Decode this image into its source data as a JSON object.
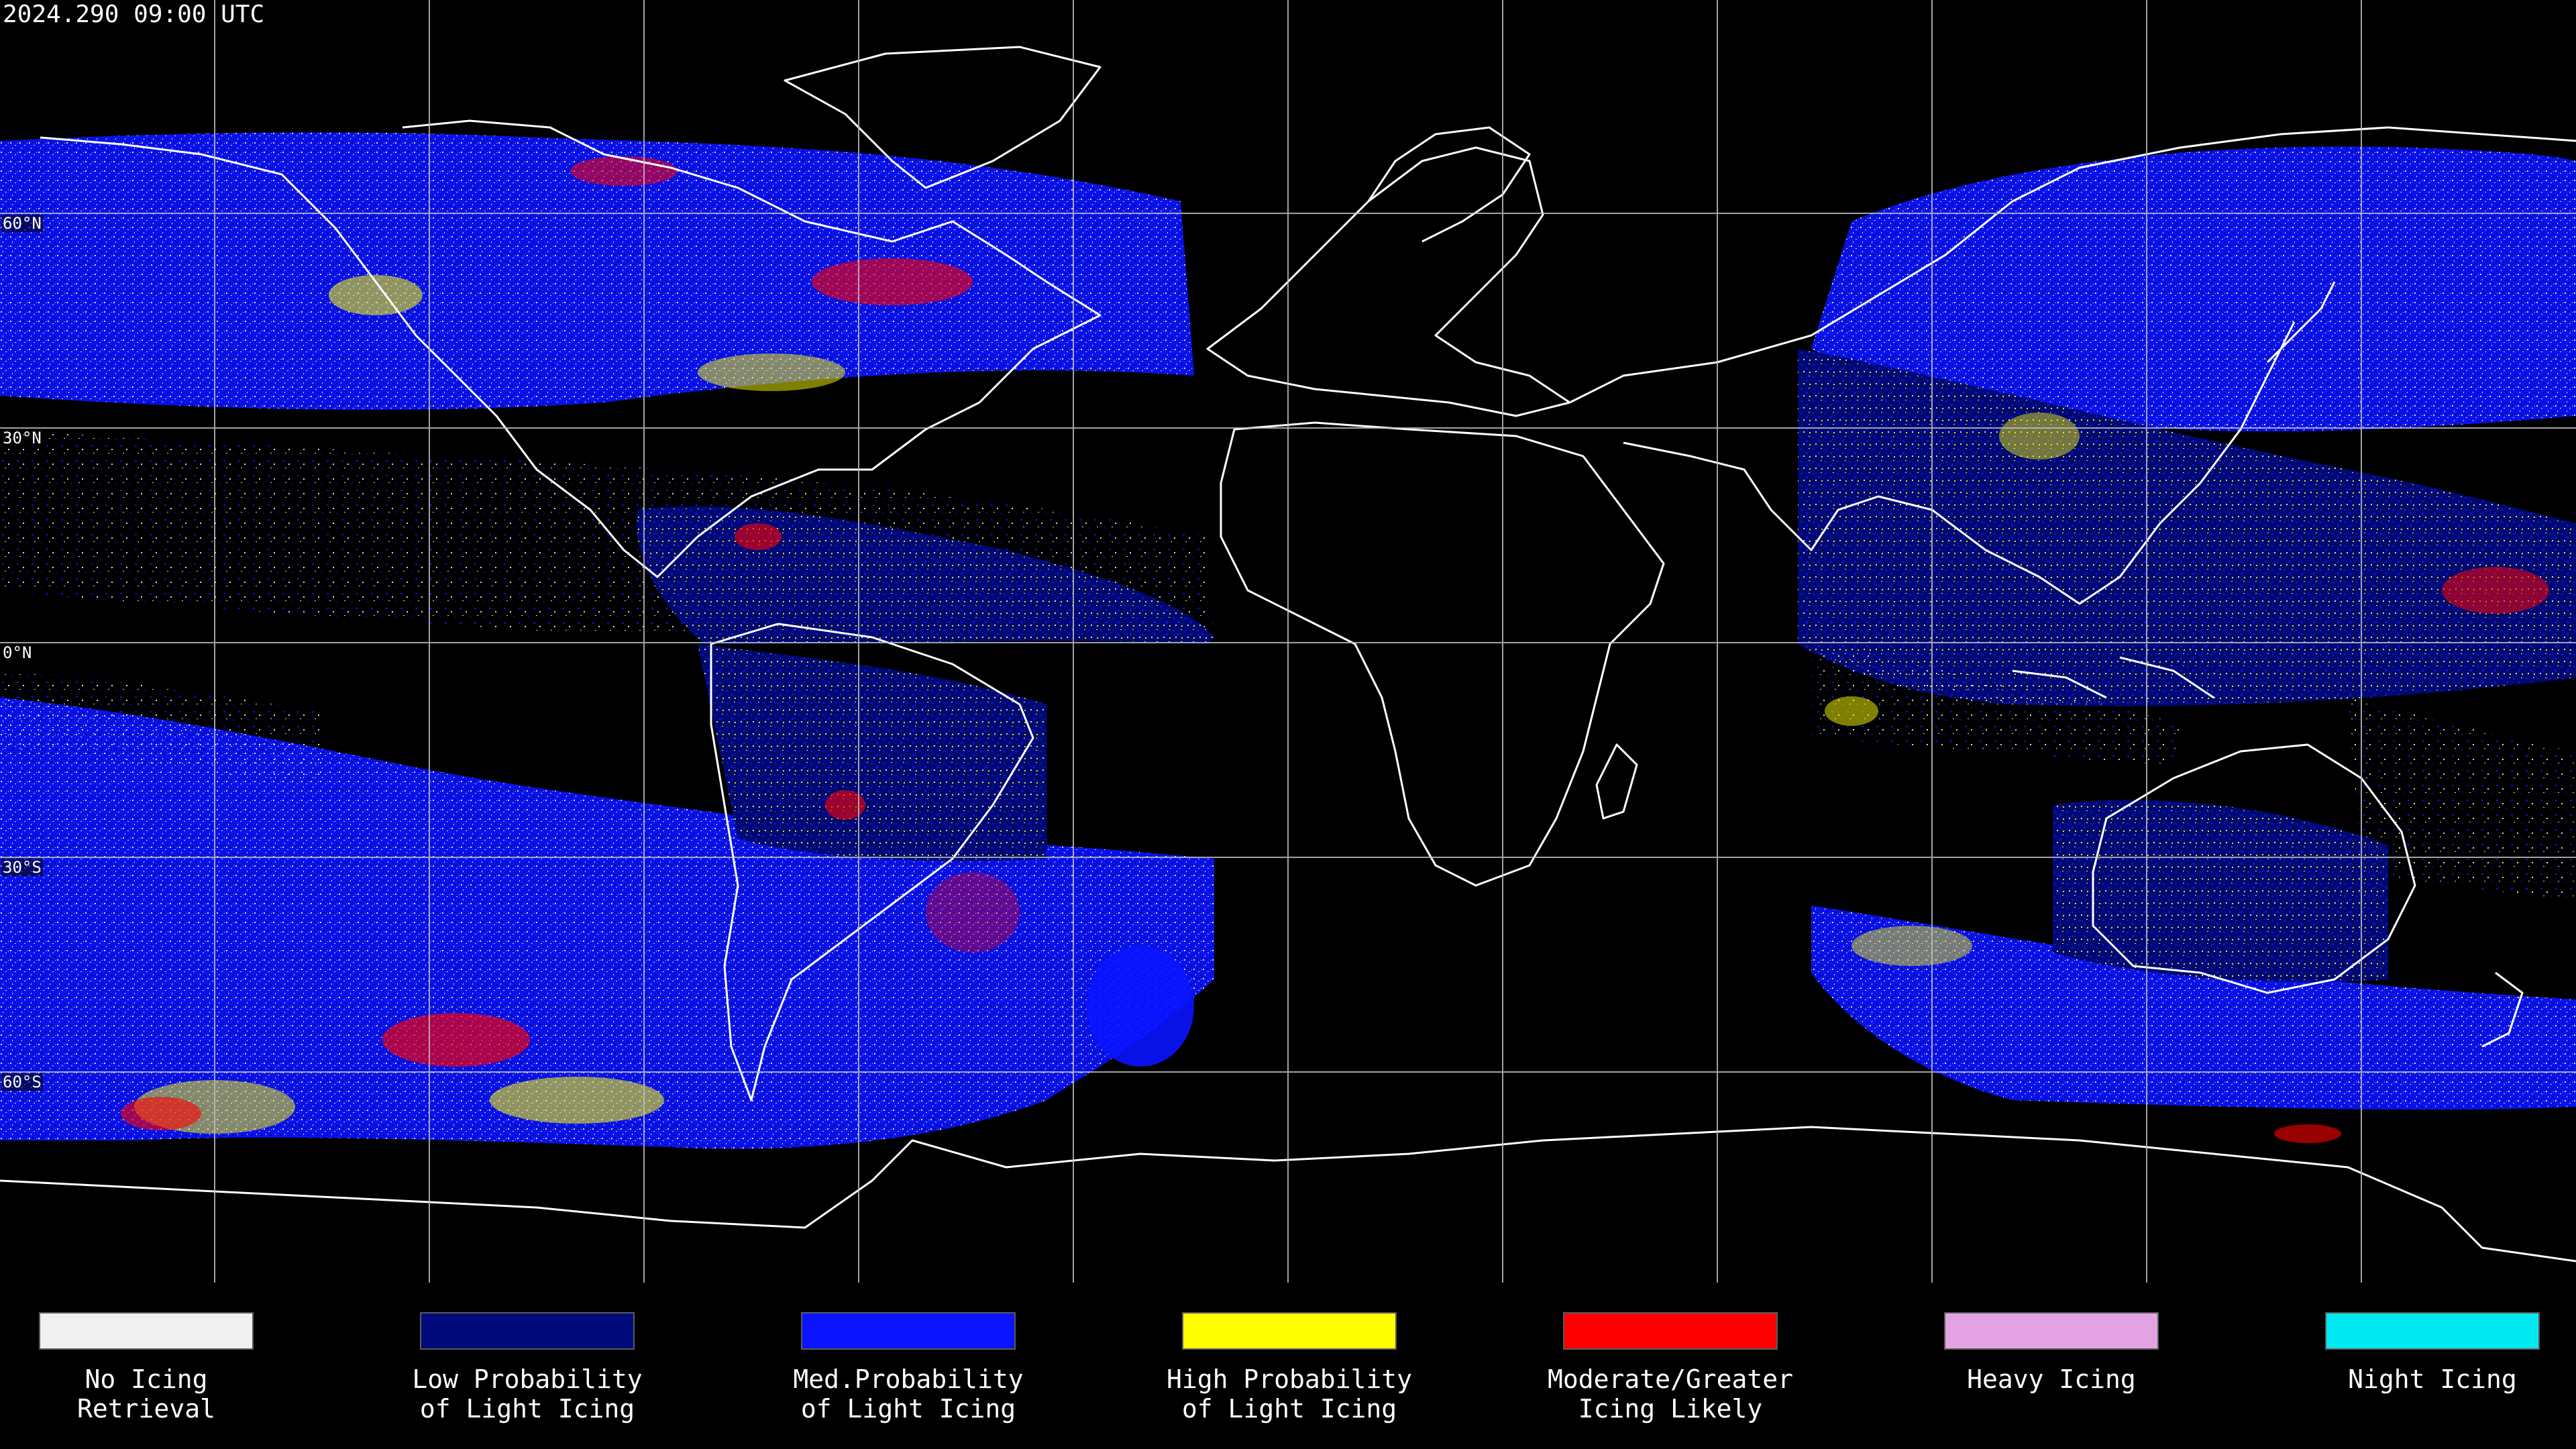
{
  "timestamp": "2024.290 09:00 UTC",
  "lat_labels": [
    "60°N",
    "30°N",
    "0°N",
    "30°S",
    "60°S"
  ],
  "colors": {
    "background": "#000000",
    "coast": "#ffffff",
    "grid": "#bfbfbf",
    "no_icing": "#f0f0f0",
    "low_probability": "#000a7a",
    "med_probability": "#0a14ff",
    "high_probability": "#ffff00",
    "moderate_greater": "#ff0000",
    "heavy_icing": "#e3a3e3",
    "night_icing": "#00e8f0"
  },
  "legend": [
    {
      "label": "No Icing\nRetrieval",
      "color": "#f0f0f0",
      "icon": "no-icing-swatch"
    },
    {
      "label": "Low Probability\nof Light Icing",
      "color": "#000a7a",
      "icon": "low-probability-swatch"
    },
    {
      "label": "Med.Probability\nof Light Icing",
      "color": "#0a14ff",
      "icon": "med-probability-swatch"
    },
    {
      "label": "High Probability\nof Light Icing",
      "color": "#ffff00",
      "icon": "high-probability-swatch"
    },
    {
      "label": "Moderate/Greater\nIcing Likely",
      "color": "#ff0000",
      "icon": "moderate-greater-swatch"
    },
    {
      "label": "Heavy Icing",
      "color": "#e3a3e3",
      "icon": "heavy-icing-swatch"
    },
    {
      "label": "Night Icing",
      "color": "#00e8f0",
      "icon": "night-icing-swatch"
    }
  ]
}
